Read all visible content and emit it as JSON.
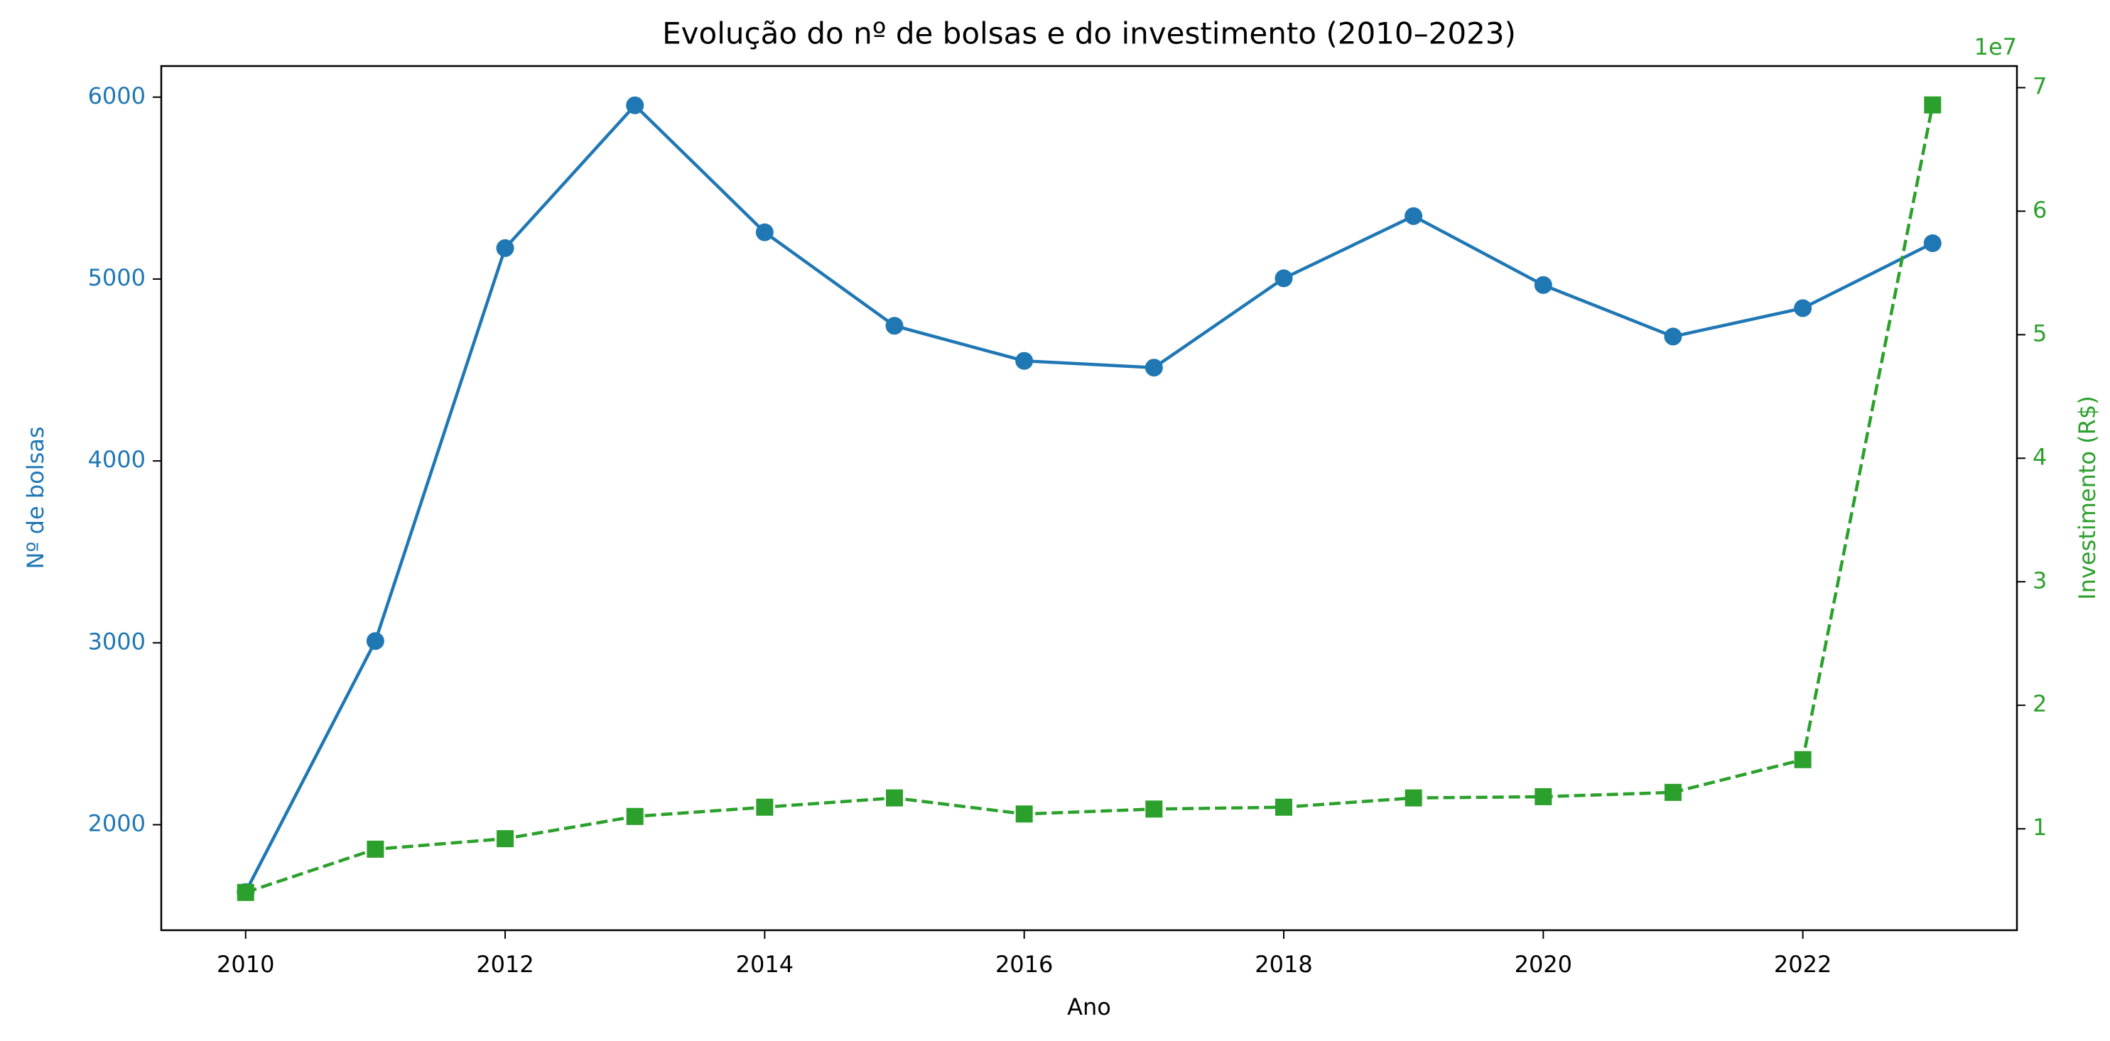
{
  "chart_data": {
    "type": "line",
    "title": "Evolução do nº de bolsas e do investimento (2010–2023)",
    "xlabel": "Ano",
    "ylabel": "Nº de bolsas",
    "y2label": "Investimento (R$)",
    "y2_offset_label": "1e7",
    "x": [
      2010,
      2011,
      2012,
      2013,
      2014,
      2015,
      2016,
      2017,
      2018,
      2019,
      2020,
      2021,
      2022,
      2023
    ],
    "series": [
      {
        "name": "Nº de bolsas",
        "color": "#1f77b4",
        "marker": "circle",
        "linestyle": "solid",
        "axis": "y",
        "values": [
          1630,
          3010,
          5170,
          5955,
          5257,
          4743,
          4550,
          4513,
          5004,
          5346,
          4967,
          4684,
          4840,
          5197
        ]
      },
      {
        "name": "Investimento (R$)",
        "color": "#2ca02c",
        "marker": "square",
        "linestyle": "dashed",
        "axis": "y2",
        "values": [
          4850000,
          8350000,
          9200000,
          11000000,
          11750000,
          12500000,
          11200000,
          11600000,
          11750000,
          12500000,
          12600000,
          12950000,
          15600000,
          68600000
        ]
      }
    ],
    "xlim": [
      2009.35,
      2023.65
    ],
    "xticks": [
      2010,
      2012,
      2014,
      2016,
      2018,
      2020,
      2022
    ],
    "ylim": [
      1420,
      6171
    ],
    "yticks": [
      2000,
      3000,
      4000,
      5000,
      6000
    ],
    "y2lim": [
      1790000,
      71750000
    ],
    "y2ticks": [
      {
        "value": 10000000,
        "label": "1"
      },
      {
        "value": 20000000,
        "label": "2"
      },
      {
        "value": 30000000,
        "label": "3"
      },
      {
        "value": 40000000,
        "label": "4"
      },
      {
        "value": 50000000,
        "label": "5"
      },
      {
        "value": 60000000,
        "label": "6"
      },
      {
        "value": 70000000,
        "label": "7"
      }
    ],
    "grid": false
  }
}
